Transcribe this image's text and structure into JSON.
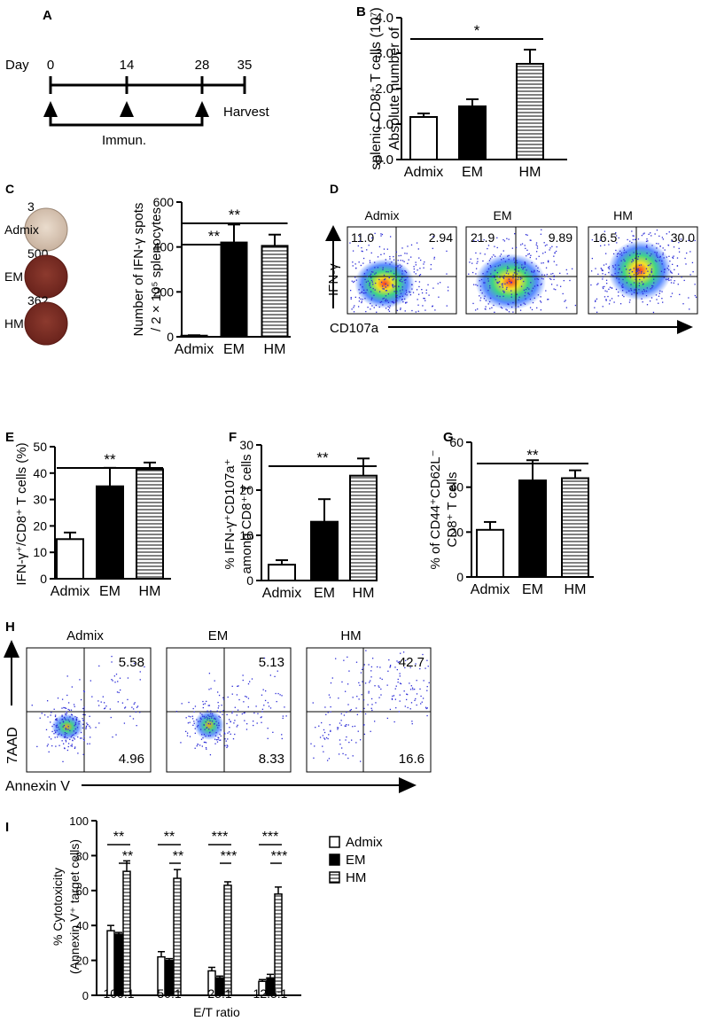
{
  "colors": {
    "ink": "#000000",
    "white": "#ffffff",
    "dish_bg": "#7c2a22",
    "dish_light": "#d9c7b8",
    "dot_cold": "#2b2bd6",
    "dot_hot": "#d6d62b"
  },
  "panels": {
    "A": {
      "letter": "A",
      "day_label": "Day",
      "days": [
        "0",
        "14",
        "28",
        "35"
      ],
      "harvest": "Harvest",
      "immun": "Immun."
    },
    "C_elispot": {
      "letter": "C",
      "wells": [
        {
          "name": "Admix",
          "count": "3"
        },
        {
          "name": "EM",
          "count": "500"
        },
        {
          "name": "HM",
          "count": "362"
        }
      ]
    },
    "D": {
      "letter": "D",
      "plots": [
        {
          "title": "Admix",
          "ul": "11.0",
          "ur": "2.94"
        },
        {
          "title": "EM",
          "ul": "21.9",
          "ur": "9.89"
        },
        {
          "title": "HM",
          "ul": "16.5",
          "ur": "30.0"
        }
      ],
      "y_axis": "IFN-γ",
      "x_axis": "CD107a"
    },
    "H": {
      "letter": "H",
      "plots": [
        {
          "title": "Admix",
          "ur": "5.58",
          "lr": "4.96"
        },
        {
          "title": "EM",
          "ur": "5.13",
          "lr": "8.33"
        },
        {
          "title": "HM",
          "ur": "42.7",
          "lr": "16.6"
        }
      ],
      "y_axis": "7AAD",
      "x_axis": "Annexin V"
    }
  },
  "chart_data": [
    {
      "id": "B",
      "letter": "B",
      "type": "bar",
      "categories": [
        "Admix",
        "EM",
        "HM"
      ],
      "values": [
        1.2,
        1.5,
        2.7
      ],
      "errors": [
        0.1,
        0.2,
        0.4
      ],
      "ylim": [
        0,
        4
      ],
      "yticks": [
        "0.0",
        "1.0",
        "2.0",
        "3.0",
        "4.0"
      ],
      "ytick_values": [
        0,
        1,
        2,
        3,
        4
      ],
      "ylabel_lines": [
        "Absolute number of",
        "splenic CD8⁺ T cells (10⁷)"
      ],
      "sig": [
        {
          "text": "*",
          "from": 0,
          "to": 2
        }
      ]
    },
    {
      "id": "C",
      "letter": "",
      "type": "bar",
      "categories": [
        "Admix",
        "EM",
        "HM"
      ],
      "values": [
        5,
        420,
        405
      ],
      "errors": [
        2,
        80,
        50
      ],
      "ylim": [
        0,
        600
      ],
      "yticks": [
        "0",
        "200",
        "400",
        "600"
      ],
      "ytick_values": [
        0,
        200,
        400,
        600
      ],
      "ylabel_lines": [
        "Number of IFN-γ spots",
        "/ 2 × 10⁵ splenocytes"
      ],
      "sig": [
        {
          "text": "**",
          "from": 0,
          "to": 2
        },
        {
          "text": "**",
          "from": 0,
          "to": 1
        }
      ]
    },
    {
      "id": "E",
      "letter": "E",
      "type": "bar",
      "categories": [
        "Admix",
        "EM",
        "HM"
      ],
      "values": [
        15,
        35,
        41.5
      ],
      "errors": [
        2.5,
        7,
        2.5
      ],
      "ylim": [
        0,
        50
      ],
      "yticks": [
        "0",
        "10",
        "20",
        "30",
        "40",
        "50"
      ],
      "ytick_values": [
        0,
        10,
        20,
        30,
        40,
        50
      ],
      "ylabel_lines": [
        "IFN-γ⁺/CD8⁺ T cells (%)"
      ],
      "sig": [
        {
          "text": "**",
          "from": 0,
          "to": 2
        }
      ]
    },
    {
      "id": "F",
      "letter": "F",
      "type": "bar",
      "categories": [
        "Admix",
        "EM",
        "HM"
      ],
      "values": [
        3.5,
        13,
        23.2
      ],
      "errors": [
        1,
        5,
        3.8
      ],
      "ylim": [
        0,
        30
      ],
      "yticks": [
        "0",
        "10",
        "20",
        "30"
      ],
      "ytick_values": [
        0,
        10,
        20,
        30
      ],
      "ylabel_lines": [
        "% IFN-γ⁺CD107a⁺",
        "among CD8⁺ T cells"
      ],
      "sig": [
        {
          "text": "**",
          "from": 0,
          "to": 2
        }
      ]
    },
    {
      "id": "G",
      "letter": "G",
      "type": "bar",
      "categories": [
        "Admix",
        "EM",
        "HM"
      ],
      "values": [
        21,
        43,
        44
      ],
      "errors": [
        3.5,
        9,
        3.5
      ],
      "ylim": [
        0,
        60
      ],
      "yticks": [
        "0",
        "20",
        "40",
        "60"
      ],
      "ytick_values": [
        0,
        20,
        40,
        60
      ],
      "ylabel_lines": [
        "% of CD44⁺CD62L⁻",
        "CD8⁺ T cells"
      ],
      "sig": [
        {
          "text": "**",
          "from": 0,
          "to": 2
        }
      ]
    },
    {
      "id": "I",
      "letter": "I",
      "type": "grouped-bar",
      "categories": [
        "100:1",
        "50:1",
        "25:1",
        "12.5:1"
      ],
      "series": [
        {
          "name": "Admix",
          "values": [
            37,
            22,
            14,
            8
          ],
          "errors": [
            3,
            3,
            2,
            1
          ]
        },
        {
          "name": "EM",
          "values": [
            35,
            20,
            10,
            10
          ],
          "errors": [
            1,
            1,
            1,
            2
          ]
        },
        {
          "name": "HM",
          "values": [
            71,
            67,
            63,
            58
          ],
          "errors": [
            6,
            5,
            2,
            4
          ]
        }
      ],
      "ylim": [
        0,
        100
      ],
      "yticks": [
        "0",
        "20",
        "40",
        "60",
        "80",
        "100"
      ],
      "ytick_values": [
        0,
        20,
        40,
        60,
        80,
        100
      ],
      "ylabel_lines": [
        "% Cytotoxicity",
        "(Annexin V⁺ target cells)"
      ],
      "xlabel": "E/T ratio",
      "sig_top": [
        "**",
        "**",
        "***",
        "***"
      ],
      "sig_bottom": [
        "**",
        "**",
        "***",
        "***"
      ]
    }
  ]
}
